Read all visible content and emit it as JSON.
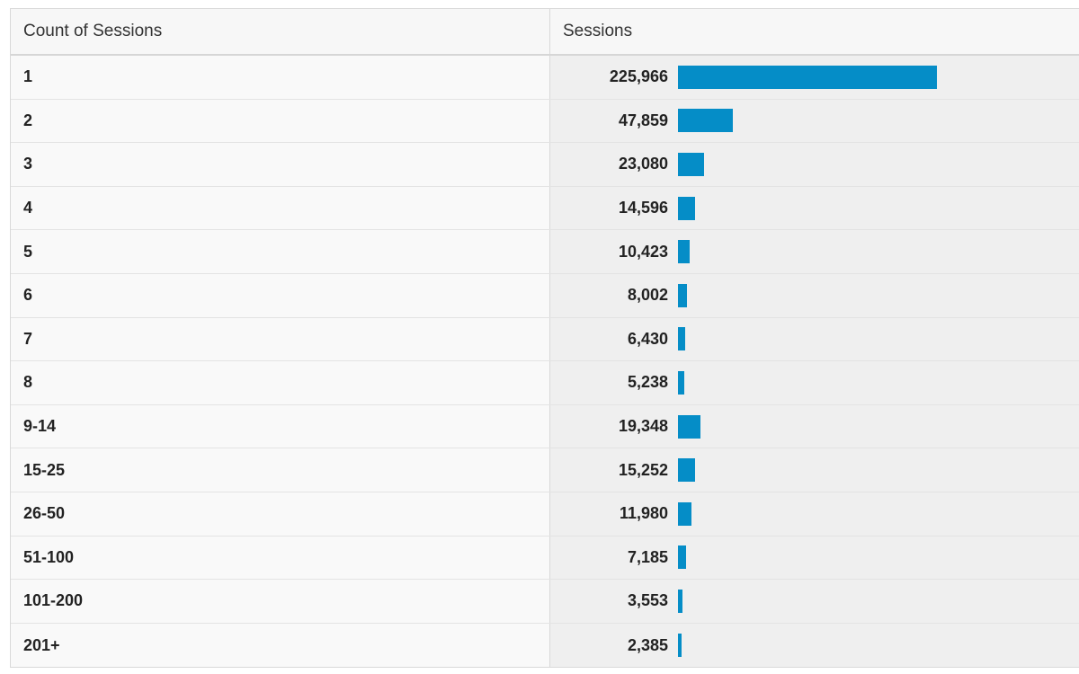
{
  "table": {
    "dimension_header": "Count of Sessions",
    "metric_header": "Sessions"
  },
  "colors": {
    "bar": "#058dc7"
  },
  "chart_data": {
    "type": "bar",
    "orientation": "horizontal",
    "categories": [
      "1",
      "2",
      "3",
      "4",
      "5",
      "6",
      "7",
      "8",
      "9-14",
      "15-25",
      "26-50",
      "51-100",
      "101-200",
      "201+"
    ],
    "values": [
      225966,
      47859,
      23080,
      14596,
      10423,
      8002,
      6430,
      5238,
      19348,
      15252,
      11980,
      7185,
      3553,
      2385
    ],
    "value_labels": [
      "225,966",
      "47,859",
      "23,080",
      "14,596",
      "10,423",
      "8,002",
      "6,430",
      "5,238",
      "19,348",
      "15,252",
      "11,980",
      "7,185",
      "3,553",
      "2,385"
    ],
    "xlabel": "",
    "ylabel": ""
  }
}
